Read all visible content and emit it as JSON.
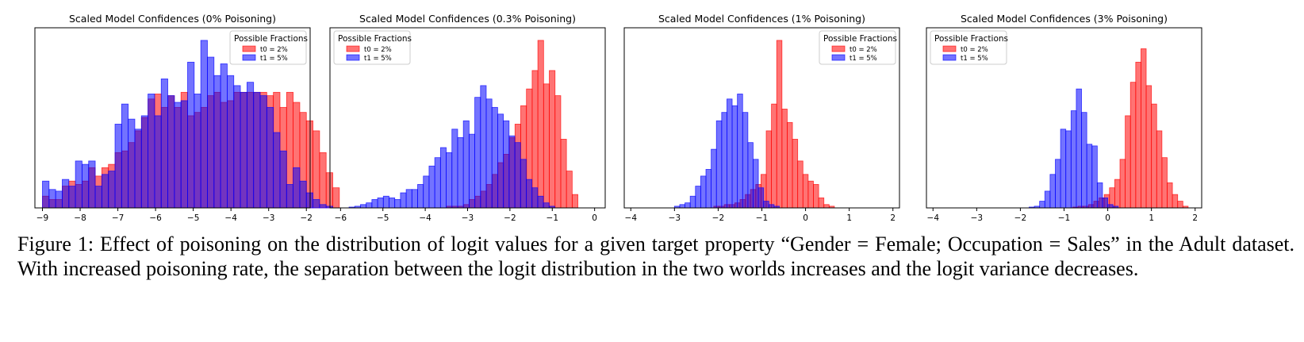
{
  "caption": "Figure 1: Effect of poisoning on the distribution of logit values for a given target property “Gender = Female; Occupation = Sales” in the Adult dataset. With increased poisoning rate, the separation between the logit distribution in the two worlds increases and the logit variance decreases.",
  "colors": {
    "red": "#ff0000",
    "blue": "#0000ff",
    "overlap": "#7f0080"
  },
  "chart_data": [
    {
      "type": "bar",
      "title": "Scaled Model Confidences (0% Poisoning)",
      "legend_title": "Possible Fractions",
      "legend_placement": "top-right",
      "xticks": [
        -9,
        -8,
        -7,
        -6,
        -5,
        -4,
        -3,
        -2
      ],
      "xlim": [
        -9.2,
        -1.9
      ],
      "ymax": 1.0,
      "series": [
        {
          "name": "t0 = 2%",
          "color": "#ff0000",
          "x0": -9.0,
          "width": 0.175,
          "values": [
            0.07,
            0.05,
            0.05,
            0.13,
            0.16,
            0.14,
            0.16,
            0.24,
            0.19,
            0.24,
            0.26,
            0.33,
            0.34,
            0.39,
            0.46,
            0.54,
            0.65,
            0.68,
            0.6,
            0.67,
            0.6,
            0.69,
            0.55,
            0.57,
            0.6,
            0.67,
            0.69,
            0.63,
            0.64,
            0.69,
            0.69,
            0.69,
            0.69,
            0.69,
            0.67,
            0.69,
            0.6,
            0.69,
            0.63,
            0.57,
            0.52,
            0.46,
            0.33,
            0.21,
            0.12
          ]
        },
        {
          "name": "t1 = 5%",
          "color": "#0000ff",
          "x0": -9.0,
          "width": 0.175,
          "values": [
            0.16,
            0.11,
            0.1,
            0.17,
            0.13,
            0.28,
            0.26,
            0.28,
            0.13,
            0.2,
            0.22,
            0.5,
            0.62,
            0.53,
            0.47,
            0.55,
            0.68,
            0.55,
            0.77,
            0.67,
            0.63,
            0.64,
            0.87,
            0.68,
            1.0,
            0.9,
            0.79,
            0.86,
            0.79,
            0.73,
            0.69,
            0.75,
            0.69,
            0.67,
            0.6,
            0.45,
            0.34,
            0.14,
            0.24,
            0.16,
            0.09,
            0.05,
            0.02,
            0.01,
            0.0
          ]
        }
      ]
    },
    {
      "type": "bar",
      "title": "Scaled Model Confidences (0.3% Poisoning)",
      "legend_title": "Possible Fractions",
      "legend_placement": "top-left",
      "xticks": [
        -6,
        -5,
        -4,
        -3,
        -2,
        -1,
        0
      ],
      "xlim": [
        -6.25,
        0.25
      ],
      "ymax": 1.0,
      "series": [
        {
          "name": "t0 = 2%",
          "color": "#ff0000",
          "x0": -3.5,
          "width": 0.135,
          "values": [
            0.01,
            0.01,
            0.01,
            0.02,
            0.05,
            0.07,
            0.1,
            0.14,
            0.2,
            0.27,
            0.32,
            0.42,
            0.5,
            0.61,
            0.71,
            0.82,
            1.0,
            0.74,
            0.82,
            0.67,
            0.41,
            0.22,
            0.08
          ]
        },
        {
          "name": "t1 = 5%",
          "color": "#0000ff",
          "x0": -5.8,
          "width": 0.135,
          "values": [
            0.005,
            0.01,
            0.02,
            0.03,
            0.05,
            0.06,
            0.07,
            0.06,
            0.05,
            0.09,
            0.11,
            0.11,
            0.14,
            0.19,
            0.25,
            0.3,
            0.36,
            0.33,
            0.47,
            0.42,
            0.52,
            0.44,
            0.66,
            0.73,
            0.65,
            0.6,
            0.56,
            0.52,
            0.43,
            0.39,
            0.29,
            0.17,
            0.12,
            0.07,
            0.03,
            0.01
          ]
        }
      ]
    },
    {
      "type": "bar",
      "title": "Scaled Model Confidences (1% Poisoning)",
      "legend_title": "Possible Fractions",
      "legend_placement": "top-right",
      "xticks": [
        -4,
        -3,
        -2,
        -1,
        0,
        1,
        2
      ],
      "xlim": [
        -4.15,
        2.15
      ],
      "ymax": 1.0,
      "series": [
        {
          "name": "t0 = 2%",
          "color": "#ff0000",
          "x0": -2.1,
          "width": 0.12,
          "values": [
            0.01,
            0.01,
            0.02,
            0.02,
            0.03,
            0.05,
            0.08,
            0.11,
            0.14,
            0.2,
            0.46,
            0.62,
            1.0,
            0.59,
            0.51,
            0.41,
            0.28,
            0.2,
            0.16,
            0.14,
            0.06,
            0.02,
            0.01
          ]
        },
        {
          "name": "t1 = 5%",
          "color": "#0000ff",
          "x0": -3.0,
          "width": 0.12,
          "values": [
            0.01,
            0.02,
            0.03,
            0.07,
            0.13,
            0.19,
            0.23,
            0.35,
            0.52,
            0.57,
            0.65,
            0.61,
            0.68,
            0.57,
            0.39,
            0.29,
            0.12,
            0.04,
            0.02,
            0.01
          ]
        }
      ]
    },
    {
      "type": "bar",
      "title": "Scaled Model Confidences (3% Poisoning)",
      "legend_title": "Possible Fractions",
      "legend_placement": "top-left",
      "xticks": [
        -4,
        -3,
        -2,
        -1,
        0,
        1,
        2
      ],
      "xlim": [
        -4.15,
        2.15
      ],
      "ymax": 1.0,
      "series": [
        {
          "name": "t0 = 2%",
          "color": "#ff0000",
          "x0": -0.8,
          "width": 0.12,
          "values": [
            0.005,
            0.01,
            0.01,
            0.02,
            0.04,
            0.06,
            0.08,
            0.12,
            0.17,
            0.29,
            0.55,
            0.75,
            0.87,
            0.95,
            0.73,
            0.62,
            0.46,
            0.3,
            0.15,
            0.08,
            0.04,
            0.01
          ]
        },
        {
          "name": "t1 = 5%",
          "color": "#0000ff",
          "x0": -1.8,
          "width": 0.12,
          "values": [
            0.005,
            0.01,
            0.04,
            0.1,
            0.2,
            0.29,
            0.47,
            0.46,
            0.58,
            0.71,
            0.57,
            0.38,
            0.37,
            0.15,
            0.06,
            0.02,
            0.01
          ]
        }
      ]
    }
  ]
}
